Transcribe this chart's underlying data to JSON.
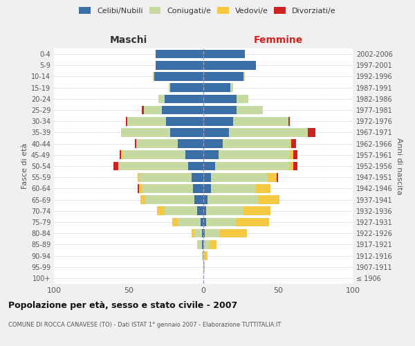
{
  "age_groups": [
    "100+",
    "95-99",
    "90-94",
    "85-89",
    "80-84",
    "75-79",
    "70-74",
    "65-69",
    "60-64",
    "55-59",
    "50-54",
    "45-49",
    "40-44",
    "35-39",
    "30-34",
    "25-29",
    "20-24",
    "15-19",
    "10-14",
    "5-9",
    "0-4"
  ],
  "birth_years": [
    "≤ 1906",
    "1907-1911",
    "1912-1916",
    "1917-1921",
    "1922-1926",
    "1927-1931",
    "1932-1936",
    "1937-1941",
    "1942-1946",
    "1947-1951",
    "1952-1956",
    "1957-1961",
    "1962-1966",
    "1967-1971",
    "1972-1976",
    "1977-1981",
    "1982-1986",
    "1987-1991",
    "1992-1996",
    "1997-2001",
    "2002-2006"
  ],
  "colors": {
    "celibe": "#3a6fa8",
    "coniugato": "#c5d9a0",
    "vedovo": "#f5c842",
    "divorziato": "#cc2222"
  },
  "maschi": {
    "celibe": [
      0,
      0,
      0,
      1,
      1,
      2,
      4,
      6,
      7,
      8,
      10,
      12,
      17,
      22,
      25,
      28,
      26,
      22,
      33,
      32,
      32
    ],
    "coniugato": [
      0,
      0,
      1,
      3,
      5,
      15,
      22,
      33,
      34,
      35,
      47,
      42,
      28,
      33,
      26,
      12,
      4,
      1,
      1,
      0,
      0
    ],
    "vedovo": [
      0,
      0,
      0,
      0,
      2,
      4,
      5,
      3,
      2,
      1,
      0,
      1,
      0,
      0,
      0,
      0,
      0,
      0,
      0,
      0,
      0
    ],
    "divorziato": [
      0,
      0,
      0,
      0,
      0,
      0,
      0,
      0,
      1,
      0,
      3,
      1,
      1,
      0,
      1,
      1,
      0,
      0,
      0,
      0,
      0
    ]
  },
  "femmine": {
    "nubile": [
      0,
      0,
      0,
      0,
      1,
      2,
      2,
      3,
      5,
      5,
      8,
      10,
      13,
      17,
      20,
      22,
      22,
      18,
      27,
      35,
      28
    ],
    "coniugata": [
      0,
      0,
      1,
      4,
      10,
      20,
      25,
      34,
      30,
      38,
      50,
      48,
      45,
      53,
      37,
      18,
      8,
      2,
      1,
      0,
      0
    ],
    "vedova": [
      0,
      1,
      2,
      5,
      18,
      22,
      18,
      14,
      10,
      6,
      2,
      2,
      1,
      0,
      0,
      0,
      0,
      0,
      0,
      0,
      0
    ],
    "divorziata": [
      0,
      0,
      0,
      0,
      0,
      0,
      0,
      0,
      0,
      1,
      3,
      3,
      3,
      5,
      1,
      0,
      0,
      0,
      0,
      0,
      0
    ]
  },
  "xlim": 100,
  "title": "Popolazione per età, sesso e stato civile - 2007",
  "subtitle": "COMUNE DI ROCCA CANAVESE (TO) - Dati ISTAT 1° gennaio 2007 - Elaborazione TUTTITALIA.IT",
  "xlabel_left": "Maschi",
  "xlabel_right": "Femmine",
  "ylabel_left": "Fasce di età",
  "ylabel_right": "Anni di nascita",
  "bg_color": "#f0f0f0",
  "plot_bg": "#ffffff",
  "grid_color": "#cccccc"
}
